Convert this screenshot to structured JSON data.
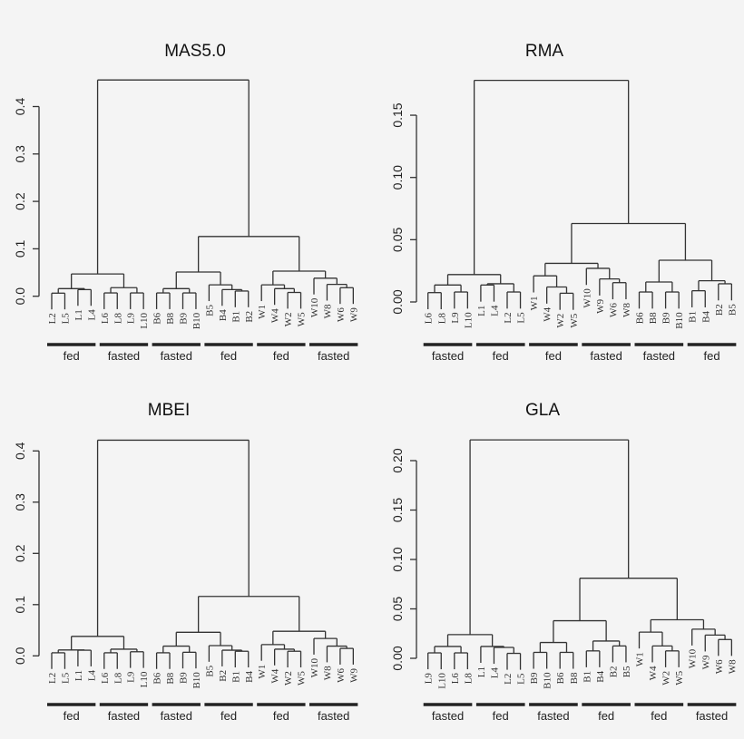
{
  "chart_data": [
    {
      "type": "dendrogram",
      "title": "MAS5.0",
      "yticks": [
        "0.0",
        "0.1",
        "0.2",
        "0.3",
        "0.4"
      ],
      "ytick_values": [
        0,
        0.1,
        0.2,
        0.3,
        0.4
      ],
      "tree": [
        [
          [
            [
              [
                "L2",
                "L5",
                0.0065
              ],
              [
                "L1",
                "L4",
                0.014
              ],
              0.016
            ],
            [
              [
                "L6",
                "L8",
                0.007
              ],
              [
                "L9",
                "L10",
                0.007
              ],
              0.018
            ],
            0.047
          ],
          [
            [
              [
                [
                  [
                    "B6",
                    "B8",
                    0.007
                  ],
                  [
                    "B9",
                    "B10",
                    0.007
                  ],
                  0.016
                ],
                [
                  "B5",
                  [
                    "B4",
                    [
                      "B1",
                      "B2",
                      0.011
                    ],
                    0.014
                  ],
                  0.024
                ],
                0.051
              ],
              [
                [
                  "W1",
                  [
                    "W4",
                    [
                      "W2",
                      "W5",
                      0.008
                    ],
                    0.016
                  ],
                  0.024
                ],
                [
                  "W10",
                  [
                    "W8",
                    [
                      "W6",
                      "W9",
                      0.018
                    ],
                    0.025
                  ],
                  0.038
                ],
                0.053
              ],
              0.126
            ]
          ],
          0.456
        ]
      ],
      "groups": [
        "fed",
        "fasted",
        "fasted",
        "fed",
        "fed",
        "fasted"
      ]
    },
    {
      "type": "dendrogram",
      "title": "RMA",
      "yticks": [
        "0.00",
        "0.05",
        "0.10",
        "0.15"
      ],
      "ytick_values": [
        0,
        0.05,
        0.1,
        0.15
      ],
      "tree": [
        [
          [
            [
              "L6",
              "L8",
              0.0075
            ],
            [
              "L9",
              "L10",
              0.008
            ],
            0.0136
          ],
          [
            [
              "L1",
              "L4",
              0.0136
            ],
            [
              "L2",
              "L5",
              0.008
            ],
            0.0146
          ],
          0.022
        ],
        [
          [
            [
              "W1",
              [
                "W4",
                [
                  "W2",
                  "W5",
                  0.007
                ],
                0.012
              ],
              0.021
            ],
            [
              "W10",
              [
                "W9",
                [
                  "W6",
                  "W8",
                  0.0155
                ],
                0.0185
              ],
              0.027
            ],
            0.031
          ],
          [
            [
              [
                "B6",
                "B8",
                0.008
              ],
              [
                "B9",
                "B10",
                0.008
              ],
              0.016
            ],
            [
              [
                "B1",
                "B4",
                0.009
              ],
              [
                "B2",
                "B5",
                0.0146
              ],
              0.017
            ],
            0.0335
          ],
          0.063
        ],
        0.178
      ],
      "groups": [
        "fasted",
        "fed",
        "fed",
        "fasted",
        "fasted",
        "fed"
      ]
    },
    {
      "type": "dendrogram",
      "title": "MBEI",
      "yticks": [
        "0.0",
        "0.1",
        "0.2",
        "0.3",
        "0.4"
      ],
      "ytick_values": [
        0,
        0.1,
        0.2,
        0.3,
        0.4
      ],
      "tree": [
        [
          [
            [
              "L2",
              "L5",
              0.006
            ],
            [
              "L1",
              "L4",
              0.011
            ],
            0.0115
          ],
          [
            [
              "L6",
              "L8",
              0.006
            ],
            [
              "L9",
              "L10",
              0.008
            ],
            0.013
          ],
          0.038
        ],
        [
          [
            [
              [
                "B6",
                "B8",
                0.006
              ],
              [
                "B9",
                "B10",
                0.007
              ],
              0.019
            ],
            [
              "B5",
              [
                "B2",
                [
                  "B1",
                  "B4",
                  0.009
                ],
                0.011
              ],
              0.02
            ],
            0.046
          ],
          [
            [
              "W1",
              [
                "W4",
                [
                  "W2",
                  "W5",
                  0.009
                ],
                0.013
              ],
              0.022
            ],
            [
              "W10",
              [
                "W8",
                [
                  "W6",
                  "W9",
                  0.0145
                ],
                0.019
              ],
              0.034
            ],
            0.048
          ],
          0.116
        ],
        0.421
      ],
      "groups": [
        "fed",
        "fasted",
        "fasted",
        "fed",
        "fed",
        "fasted"
      ]
    },
    {
      "type": "dendrogram",
      "title": "GLA",
      "yticks": [
        "0.00",
        "0.05",
        "0.10",
        "0.15",
        "0.20"
      ],
      "ytick_values": [
        0,
        0.05,
        0.1,
        0.15,
        0.2
      ],
      "tree": [
        [
          [
            [
              "L9",
              "L10",
              0.0055
            ],
            [
              "L6",
              "L8",
              0.0055
            ],
            0.012
          ],
          [
            "L1",
            [
              "L4",
              [
                "L2",
                "L5",
                0.005
              ],
              0.011
            ],
            0.012
          ],
          0.024
        ],
        [
          [
            [
              [
                "B9",
                "B10",
                0.006
              ],
              [
                "B6",
                "B8",
                0.006
              ],
              0.016
            ],
            [
              [
                "B1",
                "B4",
                0.0075
              ],
              [
                "B2",
                "B5",
                0.0125
              ],
              0.0175
            ],
            0.038
          ],
          [
            [
              "W1",
              [
                "W4",
                [
                  "W2",
                  "W5",
                  0.0075
                ],
                0.0125
              ],
              0.0265
            ],
            [
              "W10",
              [
                "W9",
                [
                  "W6",
                  "W8",
                  0.019
                ],
                0.0235
              ],
              0.0295
            ],
            0.039
          ],
          0.081
        ],
        0.221
      ],
      "groups": [
        "fasted",
        "fed",
        "fasted",
        "fed",
        "fed",
        "fasted"
      ]
    }
  ]
}
